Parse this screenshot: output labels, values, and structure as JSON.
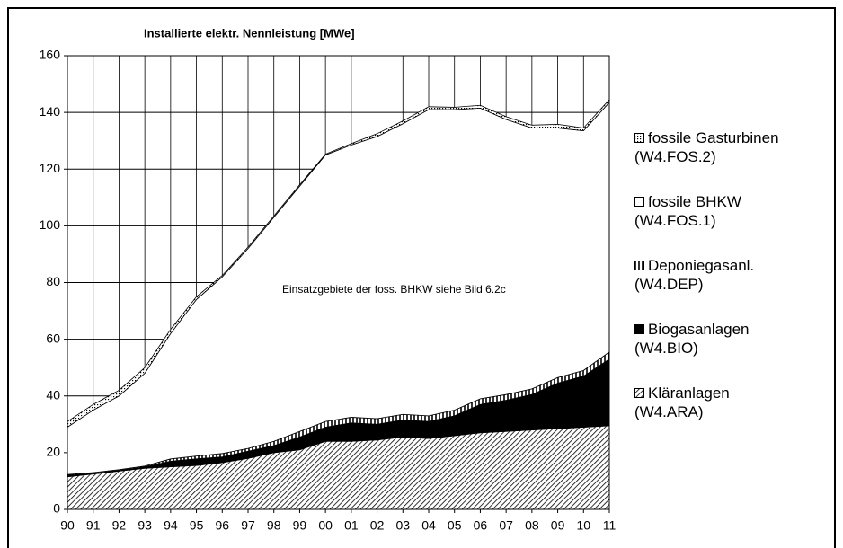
{
  "chart_data": {
    "type": "stacked_area",
    "title": "Installierte elektr. Nennleistung [MWe]",
    "annotation": "Einsatzgebiete der foss. BHKW siehe Bild 6.2c",
    "categories": [
      "90",
      "91",
      "92",
      "93",
      "94",
      "95",
      "96",
      "97",
      "98",
      "99",
      "00",
      "01",
      "02",
      "03",
      "04",
      "05",
      "06",
      "07",
      "08",
      "09",
      "10",
      "11"
    ],
    "series": [
      {
        "name": "Kläranlagen\n(W4.ARA)",
        "color": "#000000",
        "pattern": "diagonal",
        "values": [
          11.5,
          12.5,
          13.5,
          14.5,
          15,
          15.5,
          16.5,
          18,
          20,
          21,
          24,
          24,
          24.5,
          25.5,
          25,
          26,
          27,
          27.5,
          28,
          28.5,
          29,
          29.5
        ]
      },
      {
        "name": "Biogasanlagen\n(W4.BIO)",
        "color": "#000000",
        "pattern": "solid",
        "values": [
          0.5,
          0.2,
          0.2,
          0.5,
          2,
          2.3,
          2,
          2.5,
          2.5,
          4.5,
          5,
          6.5,
          5.5,
          6,
          6,
          7,
          10,
          11,
          12.5,
          16,
          18,
          23.5
        ]
      },
      {
        "name": "Deponiegasanl.\n(W4.DEP)",
        "color": "#000000",
        "pattern": "vertical",
        "values": [
          0.3,
          0.3,
          0.3,
          0.3,
          0.8,
          1,
          1.2,
          1,
          1.5,
          2,
          2,
          2,
          2,
          2,
          2,
          2,
          2,
          2,
          2,
          2,
          2,
          2.5
        ]
      },
      {
        "name": "fossile BHKW\n(W4.FOS.1)",
        "color": "#ffffff",
        "pattern": "solid",
        "values": [
          16.7,
          22,
          26,
          32.7,
          44.2,
          55.2,
          62.3,
          70.5,
          79,
          86.5,
          94,
          96,
          99.5,
          102.5,
          108,
          106,
          102.5,
          97,
          92,
          88,
          84.5,
          88
        ]
      },
      {
        "name": "fossile Gasturbinen\n(W4.FOS.2)",
        "color": "#000000",
        "pattern": "dotted",
        "values": [
          2,
          2,
          2,
          2,
          1.5,
          1,
          0.5,
          0.5,
          0.5,
          0.5,
          0.3,
          0.5,
          1,
          1,
          1,
          0.8,
          1,
          1,
          1,
          1.3,
          1,
          1
        ]
      }
    ],
    "ylim": [
      0,
      160
    ],
    "yticks": [
      0,
      20,
      40,
      60,
      80,
      100,
      120,
      140,
      160
    ],
    "grid": true
  }
}
